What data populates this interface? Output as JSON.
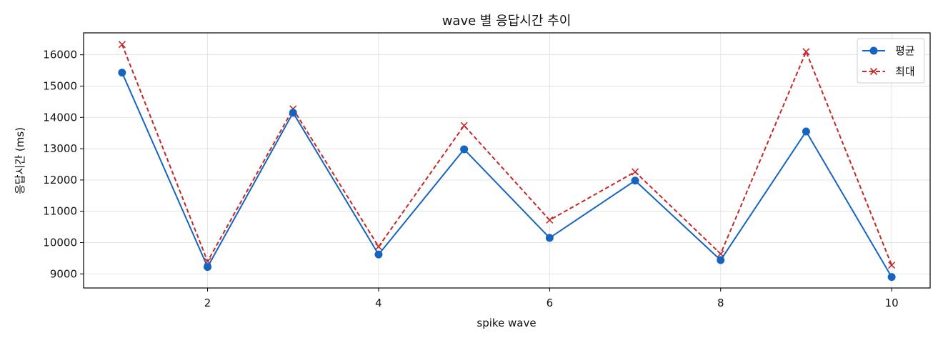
{
  "chart_data": {
    "type": "line",
    "title": "wave 별 응답시간 추이",
    "xlabel": "spike wave",
    "ylabel": "응답시간 (ms)",
    "x": [
      1,
      2,
      3,
      4,
      5,
      6,
      7,
      8,
      9,
      10
    ],
    "xlim": [
      0.55,
      10.45
    ],
    "ylim": [
      8550,
      16700
    ],
    "xticks": [
      2,
      4,
      6,
      8,
      10
    ],
    "yticks": [
      9000,
      10000,
      11000,
      12000,
      13000,
      14000,
      15000,
      16000
    ],
    "grid": true,
    "legend_position": "top-right",
    "series": [
      {
        "name": "평균",
        "values": [
          15430,
          9220,
          14150,
          9620,
          12980,
          10150,
          11980,
          9440,
          13550,
          8900
        ],
        "color": "#1565c0",
        "line_style": "solid",
        "marker": "circle"
      },
      {
        "name": "최대",
        "values": [
          16330,
          9400,
          14270,
          9870,
          13740,
          10720,
          12260,
          9640,
          16100,
          9280
        ],
        "color": "#c62828",
        "line_style": "dashed",
        "marker": "x"
      }
    ]
  }
}
